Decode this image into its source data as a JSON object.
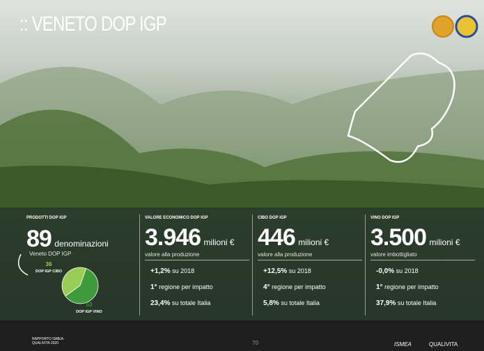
{
  "header": {
    "title": ":: VENETO DOP IGP"
  },
  "panels": [
    {
      "label": "PRODOTTI DOP IGP",
      "value": "89",
      "unit": "denominazioni",
      "sub": "Veneto DOP IGP"
    },
    {
      "label": "VALORE ECONOMICO DOP IGP",
      "value": "3.946",
      "unit": "milioni €",
      "sub": "valore alla produzione",
      "rows": [
        {
          "strong": "+1,2%",
          "text": "su 2018"
        },
        {
          "strong": "1°",
          "text": "regione per impatto"
        },
        {
          "strong": "23,4%",
          "text": "su totale Italia"
        }
      ]
    },
    {
      "label": "CIBO DOP IGP",
      "value": "446",
      "unit": "milioni €",
      "sub": "valore alla produzione",
      "rows": [
        {
          "strong": "+12,5%",
          "text": "su 2018"
        },
        {
          "strong": "4°",
          "text": "regione per impatto"
        },
        {
          "strong": "5,8%",
          "text": "su totale Italia"
        }
      ]
    },
    {
      "label": "VINO DOP IGP",
      "value": "3.500",
      "unit": "milioni €",
      "sub": "valore imbottigliato",
      "rows": [
        {
          "strong": "-0,0%",
          "text": "su 2018"
        },
        {
          "strong": "1°",
          "text": "regione per impatto"
        },
        {
          "strong": "37,9%",
          "text": "su totale Italia"
        }
      ]
    }
  ],
  "pie": {
    "slices": [
      {
        "name": "DOP IGP CIBO",
        "value": 36,
        "color": "#9acd55"
      },
      {
        "name": "DOP IGP VINO",
        "value": 53,
        "color": "#3e9a3a"
      }
    ]
  },
  "footer": {
    "report": "RAPPORTO ISMEA-QUALIVITA 2020",
    "page": "70",
    "brands": [
      "ISMEA",
      "QUALIVITA"
    ]
  }
}
